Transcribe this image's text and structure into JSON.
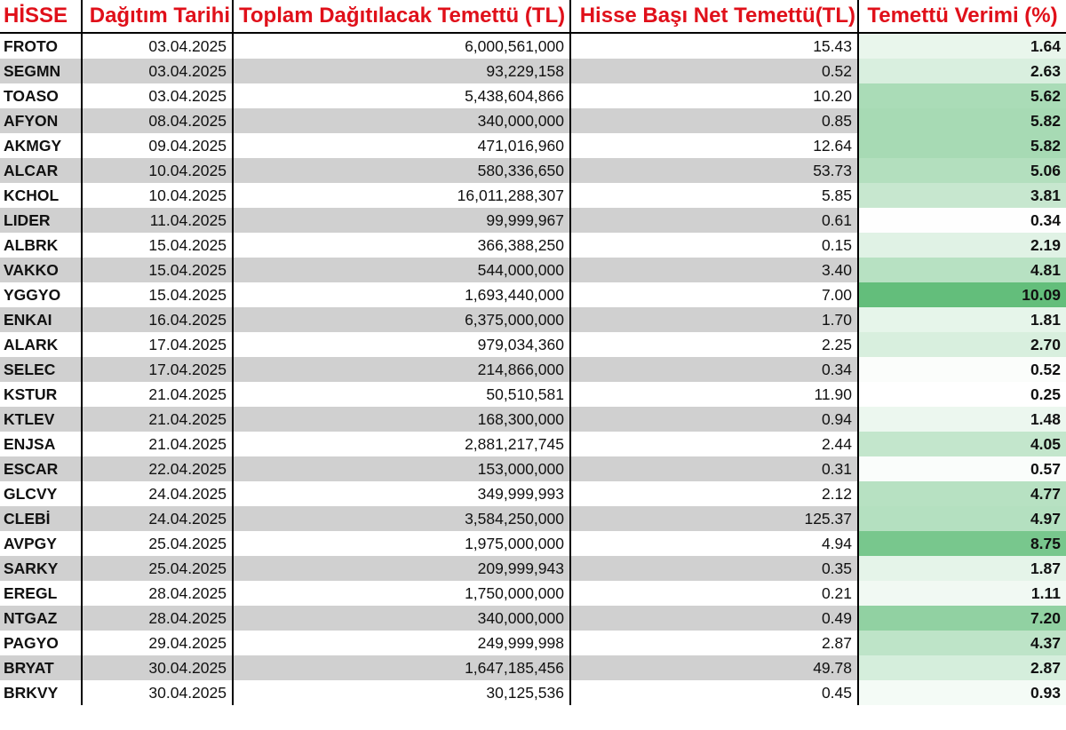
{
  "headers": {
    "hisse": "HİSSE",
    "date": "Dağıtım Tarihi",
    "total": "Toplam Dağıtılacak Temettü (TL)",
    "net": "Hisse Başı Net Temettü(TL)",
    "yield": "Temettü Verimi (%)"
  },
  "colors": {
    "header_text": "#e0101a",
    "alt_row": "#d0d0d0",
    "scale_low": "#ffffff",
    "scale_high": "#63be7b"
  },
  "rows": [
    {
      "code": "FROTO",
      "date": "03.04.2025",
      "total": "6,000,561,000",
      "net": "15.43",
      "yield": "1.64"
    },
    {
      "code": "SEGMN",
      "date": "03.04.2025",
      "total": "93,229,158",
      "net": "0.52",
      "yield": "2.63"
    },
    {
      "code": "TOASO",
      "date": "03.04.2025",
      "total": "5,438,604,866",
      "net": "10.20",
      "yield": "5.62"
    },
    {
      "code": "AFYON",
      "date": "08.04.2025",
      "total": "340,000,000",
      "net": "0.85",
      "yield": "5.82"
    },
    {
      "code": "AKMGY",
      "date": "09.04.2025",
      "total": "471,016,960",
      "net": "12.64",
      "yield": "5.82"
    },
    {
      "code": "ALCAR",
      "date": "10.04.2025",
      "total": "580,336,650",
      "net": "53.73",
      "yield": "5.06"
    },
    {
      "code": "KCHOL",
      "date": "10.04.2025",
      "total": "16,011,288,307",
      "net": "5.85",
      "yield": "3.81"
    },
    {
      "code": "LIDER",
      "date": "11.04.2025",
      "total": "99,999,967",
      "net": "0.61",
      "yield": "0.34"
    },
    {
      "code": "ALBRK",
      "date": "15.04.2025",
      "total": "366,388,250",
      "net": "0.15",
      "yield": "2.19"
    },
    {
      "code": "VAKKO",
      "date": "15.04.2025",
      "total": "544,000,000",
      "net": "3.40",
      "yield": "4.81"
    },
    {
      "code": "YGGYO",
      "date": "15.04.2025",
      "total": "1,693,440,000",
      "net": "7.00",
      "yield": "10.09"
    },
    {
      "code": "ENKAI",
      "date": "16.04.2025",
      "total": "6,375,000,000",
      "net": "1.70",
      "yield": "1.81"
    },
    {
      "code": "ALARK",
      "date": "17.04.2025",
      "total": "979,034,360",
      "net": "2.25",
      "yield": "2.70"
    },
    {
      "code": "SELEC",
      "date": "17.04.2025",
      "total": "214,866,000",
      "net": "0.34",
      "yield": "0.52"
    },
    {
      "code": "KSTUR",
      "date": "21.04.2025",
      "total": "50,510,581",
      "net": "11.90",
      "yield": "0.25"
    },
    {
      "code": "KTLEV",
      "date": "21.04.2025",
      "total": "168,300,000",
      "net": "0.94",
      "yield": "1.48"
    },
    {
      "code": "ENJSA",
      "date": "21.04.2025",
      "total": "2,881,217,745",
      "net": "2.44",
      "yield": "4.05"
    },
    {
      "code": "ESCAR",
      "date": "22.04.2025",
      "total": "153,000,000",
      "net": "0.31",
      "yield": "0.57"
    },
    {
      "code": "GLCVY",
      "date": "24.04.2025",
      "total": "349,999,993",
      "net": "2.12",
      "yield": "4.77"
    },
    {
      "code": "CLEBİ",
      "date": "24.04.2025",
      "total": "3,584,250,000",
      "net": "125.37",
      "yield": "4.97"
    },
    {
      "code": "AVPGY",
      "date": "25.04.2025",
      "total": "1,975,000,000",
      "net": "4.94",
      "yield": "8.75"
    },
    {
      "code": "SARKY",
      "date": "25.04.2025",
      "total": "209,999,943",
      "net": "0.35",
      "yield": "1.87"
    },
    {
      "code": "EREGL",
      "date": "28.04.2025",
      "total": "1,750,000,000",
      "net": "0.21",
      "yield": "1.11"
    },
    {
      "code": "NTGAZ",
      "date": "28.04.2025",
      "total": "340,000,000",
      "net": "0.49",
      "yield": "7.20"
    },
    {
      "code": "PAGYO",
      "date": "29.04.2025",
      "total": "249,999,998",
      "net": "2.87",
      "yield": "4.37"
    },
    {
      "code": "BRYAT",
      "date": "30.04.2025",
      "total": "1,647,185,456",
      "net": "49.78",
      "yield": "2.87"
    },
    {
      "code": "BRKVY",
      "date": "30.04.2025",
      "total": "30,125,536",
      "net": "0.45",
      "yield": "0.93"
    }
  ]
}
